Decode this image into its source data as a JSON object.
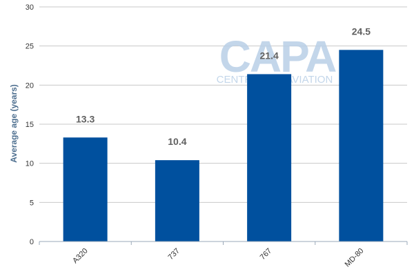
{
  "chart_data": {
    "type": "bar",
    "title": "",
    "xlabel": "",
    "ylabel": "Average age (years)",
    "categories": [
      "A320",
      "737",
      "767",
      "MD-80"
    ],
    "values": [
      13.3,
      10.4,
      21.4,
      24.5
    ],
    "value_labels": [
      "13.3",
      "10.4",
      "21.4",
      "24.5"
    ],
    "ylim": [
      0,
      30
    ],
    "yticks": [
      0,
      5,
      10,
      15,
      20,
      25,
      30
    ],
    "grid": true,
    "legend": "none",
    "colors": {
      "bar": "#00509e",
      "grid": "#c8c8c8",
      "axis": "#9aa8b8",
      "value_label": "#606060",
      "ylabel": "#4e6f8f",
      "tick_label": "#333333"
    }
  },
  "watermark": {
    "logo_text": "CAPA",
    "subtext": "CENTRE FOR AVIATION",
    "color": "#b8cfe6"
  }
}
